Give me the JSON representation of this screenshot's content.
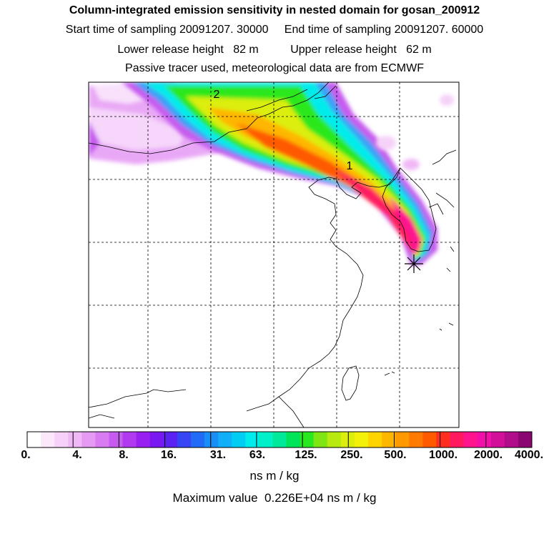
{
  "header": {
    "title": "Column-integrated emission sensitivity in nested domain for gosan_200912",
    "start_label": "Start time of sampling 20091207. 30000",
    "end_label": "End time of sampling 20091207. 60000",
    "lower_label": "Lower release height   82 m",
    "upper_label": "Upper release height   62 m",
    "tracer_note": "Passive tracer used, meteorological data are from ECMWF"
  },
  "map": {
    "markers": [
      "2",
      "1"
    ],
    "colors": {
      "land_line": "#000000",
      "grid_line": "#000000",
      "frame": "#000000"
    }
  },
  "colorbar": {
    "tick_labels": [
      "0.",
      "4.",
      "8.",
      "16.",
      "31.",
      "63.",
      "125.",
      "250.",
      "500.",
      "1000.",
      "2000.",
      "4000."
    ],
    "units": "ns m / kg",
    "colors": [
      "#ffffff",
      "#fbe8fb",
      "#f6d2f8",
      "#f0b8f6",
      "#e59af4",
      "#d97cf1",
      "#c65bef",
      "#b13af0",
      "#9820f0",
      "#7a18f2",
      "#5a22f3",
      "#3845f5",
      "#206cf6",
      "#1a8ef7",
      "#12aef8",
      "#00cdf4",
      "#00ecec",
      "#00f0c8",
      "#00e99a",
      "#00e45a",
      "#2ae81f",
      "#7fe613",
      "#b6ea10",
      "#dcee0c",
      "#f3f00a",
      "#ffd400",
      "#ffb600",
      "#ff9900",
      "#ff7a00",
      "#ff5a00",
      "#ff2e20",
      "#ff1a60",
      "#ff1490",
      "#f210a8",
      "#d01098",
      "#b10c8a",
      "#8a0670"
    ]
  },
  "max_value": "Maximum value  0.226E+04 ns m / kg"
}
